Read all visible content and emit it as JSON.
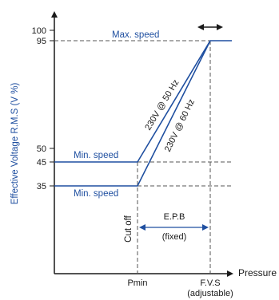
{
  "axes": {
    "y_label": "Effective Voltage R.M.S (V %)",
    "x_label": "Pressure",
    "y_ticks": [
      "100",
      "95",
      "50",
      "45",
      "35"
    ],
    "x_ticks": [
      "Pmin",
      "F.V.S"
    ],
    "x_tick_note": "(adjustable)"
  },
  "labels": {
    "max_speed": "Max. speed",
    "min_speed_upper": "Min. speed",
    "min_speed_lower": "Min. speed",
    "line_50hz": "230V @ 50 Hz",
    "line_60hz": "230V @ 60 Hz",
    "cut_off": "Cut off",
    "epb": "E.P.B",
    "epb_note": "(fixed)"
  },
  "colors": {
    "curve": "#1f4fa0",
    "axis": "#1a1a1a",
    "dashed": "#555555",
    "text_blue": "#1f4fa0"
  }
}
